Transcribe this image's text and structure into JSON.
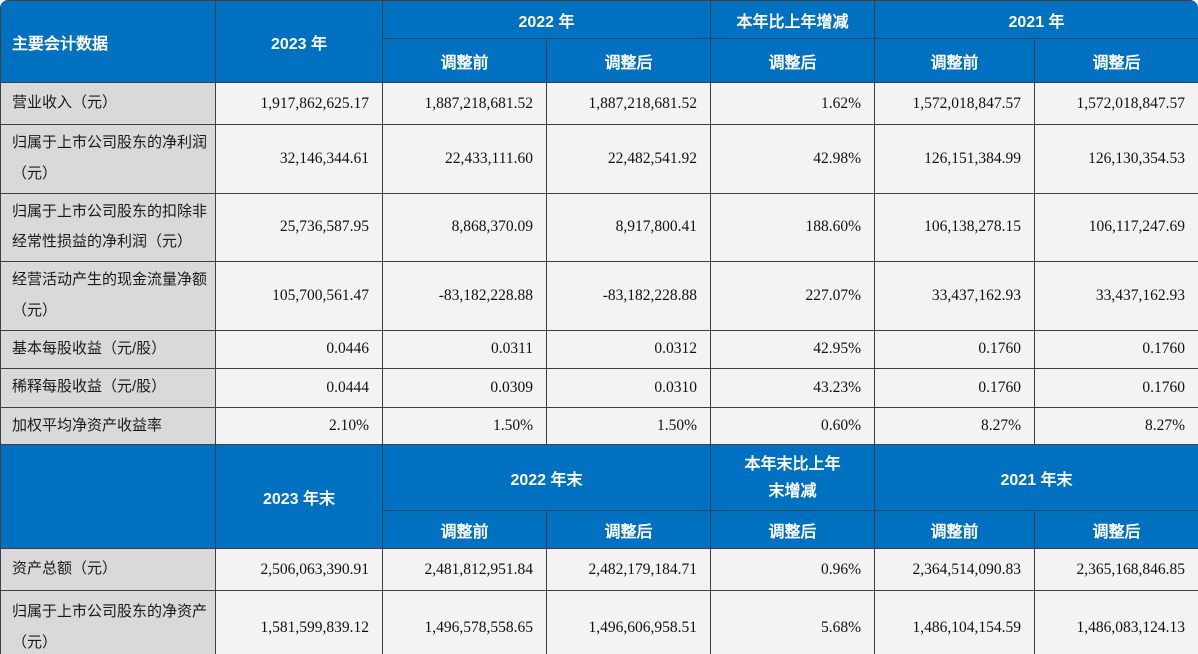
{
  "table": {
    "accent_blue": "#0070C0",
    "label_bg": "#D9D9D9",
    "value_bg": "#F3F3F3",
    "section1": {
      "header": {
        "title": "主要会计数据",
        "y2023": "2023 年",
        "y2022": "2022 年",
        "change": "本年比上年增减",
        "y2021": "2021 年",
        "adj_before": "调整前",
        "adj_after": "调整后"
      },
      "rows": [
        {
          "label": "营业收入（元）",
          "values": [
            "1,917,862,625.17",
            "1,887,218,681.52",
            "1,887,218,681.52",
            "1.62%",
            "1,572,018,847.57",
            "1,572,018,847.57"
          ]
        },
        {
          "label": "归属于上市公司股东的净利润（元）",
          "values": [
            "32,146,344.61",
            "22,433,111.60",
            "22,482,541.92",
            "42.98%",
            "126,151,384.99",
            "126,130,354.53"
          ]
        },
        {
          "label": "归属于上市公司股东的扣除非经常性损益的净利润（元）",
          "values": [
            "25,736,587.95",
            "8,868,370.09",
            "8,917,800.41",
            "188.60%",
            "106,138,278.15",
            "106,117,247.69"
          ]
        },
        {
          "label": "经营活动产生的现金流量净额（元）",
          "values": [
            "105,700,561.47",
            "-83,182,228.88",
            "-83,182,228.88",
            "227.07%",
            "33,437,162.93",
            "33,437,162.93"
          ]
        },
        {
          "label": "基本每股收益（元/股）",
          "values": [
            "0.0446",
            "0.0311",
            "0.0312",
            "42.95%",
            "0.1760",
            "0.1760"
          ]
        },
        {
          "label": "稀释每股收益（元/股）",
          "values": [
            "0.0444",
            "0.0309",
            "0.0310",
            "43.23%",
            "0.1760",
            "0.1760"
          ]
        },
        {
          "label": "加权平均净资产收益率",
          "values": [
            "2.10%",
            "1.50%",
            "1.50%",
            "0.60%",
            "8.27%",
            "8.27%"
          ]
        }
      ]
    },
    "section2": {
      "header": {
        "title": "",
        "y2023": "2023 年末",
        "y2022": "2022 年末",
        "change": "本年末比上年末增减",
        "y2021": "2021 年末",
        "adj_before": "调整前",
        "adj_after": "调整后"
      },
      "rows": [
        {
          "label": "资产总额（元）",
          "values": [
            "2,506,063,390.91",
            "2,481,812,951.84",
            "2,482,179,184.71",
            "0.96%",
            "2,364,514,090.83",
            "2,365,168,846.85"
          ]
        },
        {
          "label": "归属于上市公司股东的净资产（元）",
          "values": [
            "1,581,599,839.12",
            "1,496,578,558.65",
            "1,496,606,958.51",
            "5.68%",
            "1,486,104,154.59",
            "1,486,083,124.13"
          ]
        }
      ]
    }
  }
}
